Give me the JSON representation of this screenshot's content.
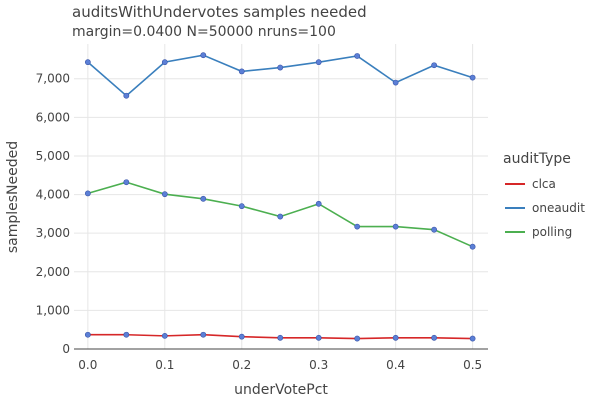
{
  "chart_data": {
    "type": "line",
    "title": "auditsWithUndervotes samples needed",
    "subtitle": "margin=0.0400 N=50000 nruns=100",
    "xlabel": "underVotePct",
    "ylabel": "samplesNeeded",
    "xlim": [
      -0.018,
      0.52
    ],
    "ylim": [
      0,
      7900
    ],
    "x_ticks": [
      0.0,
      0.1,
      0.2,
      0.3,
      0.4,
      0.5
    ],
    "x_tick_labels": [
      "0.0",
      "0.1",
      "0.2",
      "0.3",
      "0.4",
      "0.5"
    ],
    "y_ticks": [
      0,
      1000,
      2000,
      3000,
      4000,
      5000,
      6000,
      7000
    ],
    "y_tick_labels": [
      "0",
      "1,000",
      "2,000",
      "3,000",
      "4,000",
      "5,000",
      "6,000",
      "7,000"
    ],
    "grid": true,
    "legend_title": "auditType",
    "legend_position": "right",
    "marker_color": "#5b7fd6",
    "x": [
      0.0,
      0.05,
      0.1,
      0.15,
      0.2,
      0.25,
      0.3,
      0.35,
      0.4,
      0.45,
      0.5
    ],
    "series": [
      {
        "name": "clca",
        "color": "#d62728",
        "values": [
          370,
          370,
          340,
          370,
          320,
          290,
          290,
          270,
          290,
          290,
          270
        ]
      },
      {
        "name": "oneaudit",
        "color": "#3a7fbd",
        "values": [
          7430,
          6560,
          7430,
          7610,
          7190,
          7290,
          7430,
          7590,
          6900,
          7350,
          7030
        ]
      },
      {
        "name": "polling",
        "color": "#4caf50",
        "values": [
          4030,
          4320,
          4010,
          3890,
          3700,
          3430,
          3760,
          3170,
          3170,
          3090,
          2650
        ]
      }
    ]
  }
}
